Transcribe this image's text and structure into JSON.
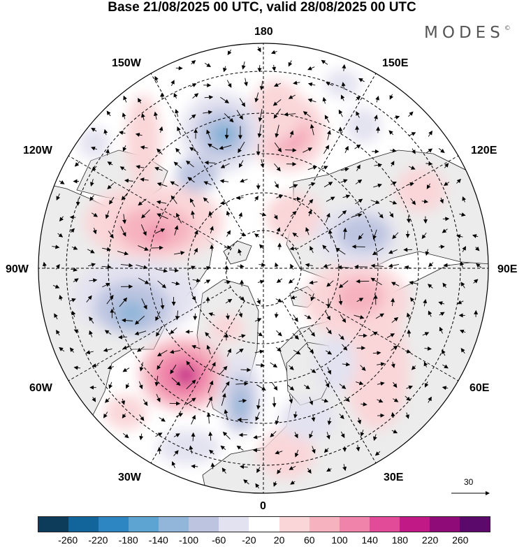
{
  "title": "Base 21/08/2025 00 UTC, valid 28/08/2025 00 UTC",
  "brand": {
    "name": "MODES",
    "mark": "©"
  },
  "longitude_labels": {
    "top": "180",
    "bottom": "0",
    "left": "90W",
    "right": "90E",
    "upper_left_1": "150W",
    "upper_left_2": "120W",
    "upper_right_1": "150E",
    "upper_right_2": "120E",
    "lower_left_1": "60W",
    "lower_left_2": "30W",
    "lower_right_1": "60E",
    "lower_right_2": "30E"
  },
  "reference_vector": {
    "label": "30",
    "value": 30
  },
  "colorbar": {
    "colors": [
      "#0d3b5a",
      "#12659a",
      "#2d86c2",
      "#5ea4d2",
      "#92b6d9",
      "#bcc4e0",
      "#e3e2f0",
      "#ffffff",
      "#fad6d8",
      "#f6b3bf",
      "#f083a9",
      "#e24b98",
      "#c11a86",
      "#8e0b78",
      "#5b0a6b"
    ],
    "ticks": [
      "-260",
      "-220",
      "-180",
      "-140",
      "-100",
      "-60",
      "-20",
      "20",
      "60",
      "100",
      "140",
      "180",
      "220",
      "260"
    ]
  }
}
